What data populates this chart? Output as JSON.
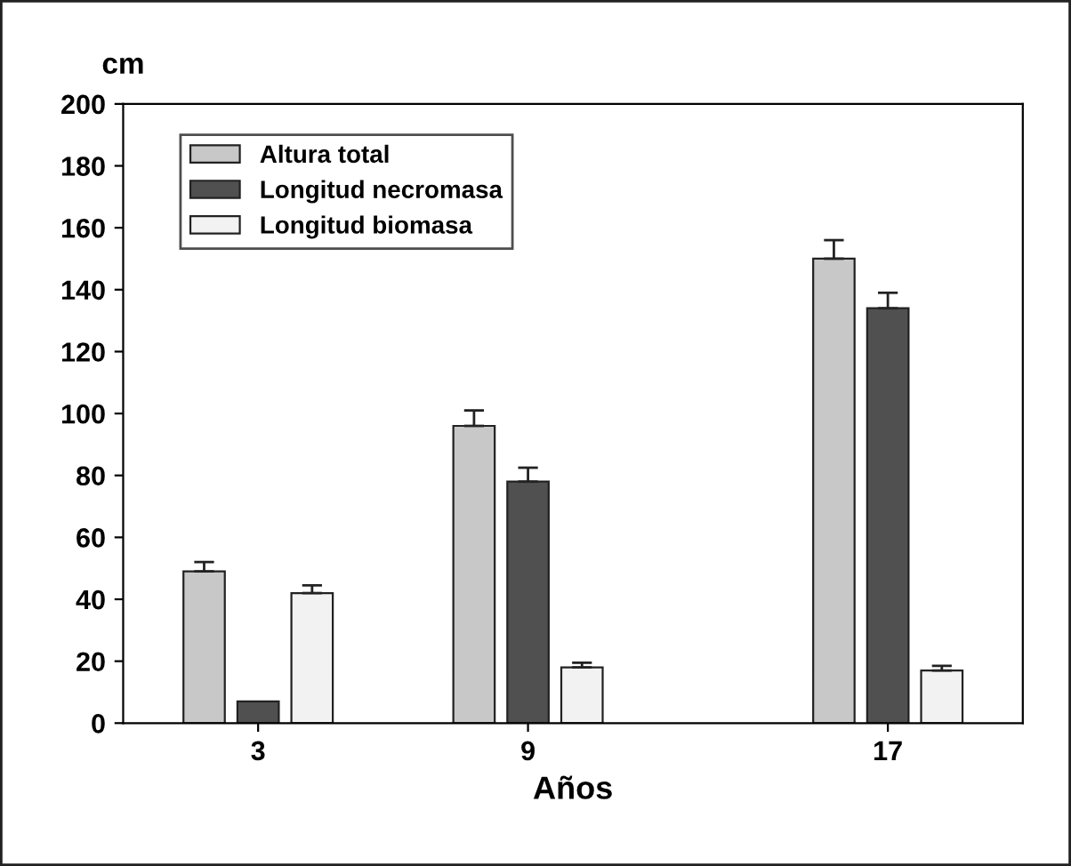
{
  "chart_data": {
    "type": "bar",
    "ylabel": "cm",
    "xlabel": "Años",
    "x": [
      3,
      9,
      17
    ],
    "xlim": [
      0,
      20
    ],
    "xticks": [
      3,
      9,
      17
    ],
    "ylim": [
      0,
      200
    ],
    "yticks": [
      0,
      20,
      40,
      60,
      80,
      100,
      120,
      140,
      160,
      180,
      200
    ],
    "legend": "top left",
    "grid": false,
    "series": [
      {
        "name": "Altura total",
        "color": "#c8c8c8",
        "values": [
          49,
          96,
          150
        ],
        "errors": [
          [
            49,
            52
          ],
          [
            96,
            101
          ],
          [
            150,
            156
          ]
        ]
      },
      {
        "name": "Longitud necromasa",
        "color": "#505050",
        "values": [
          7,
          78,
          134
        ],
        "errors": [
          null,
          [
            78,
            82.5
          ],
          [
            134,
            139
          ]
        ]
      },
      {
        "name": "Longitud biomasa",
        "color": "#f2f2f2",
        "values": [
          42,
          18,
          17
        ],
        "errors": [
          [
            42,
            44.5
          ],
          [
            18,
            19.5
          ],
          [
            17,
            18.5
          ]
        ]
      }
    ]
  }
}
